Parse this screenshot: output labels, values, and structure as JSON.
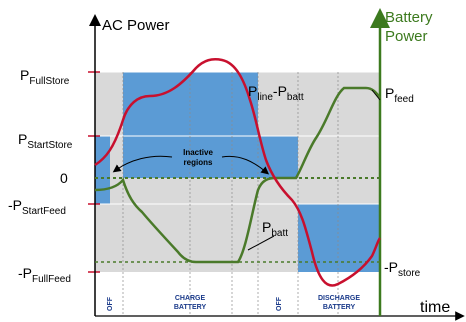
{
  "axes": {
    "left_title": "AC Power",
    "right_title_line1": "Battery",
    "right_title_line2": "Power",
    "x_label": "time"
  },
  "levels": {
    "full_store": {
      "base": "P",
      "sub": "FullStore"
    },
    "start_store": {
      "base": "P",
      "sub": "StartStore"
    },
    "zero": "0",
    "start_feed": {
      "base": "-P",
      "sub": "StartFeed"
    },
    "full_feed": {
      "base": "-P",
      "sub": "FullFeed"
    }
  },
  "curve_labels": {
    "line_minus_batt": {
      "a": "P",
      "a_sub": "line",
      "mid": "-P",
      "b_sub": "batt"
    },
    "batt": {
      "base": "P",
      "sub": "batt"
    },
    "feed": {
      "base": "P",
      "sub": "feed"
    },
    "store": {
      "base": "-P",
      "sub": "store"
    }
  },
  "annotation": {
    "line1": "Inactive",
    "line2": "regions"
  },
  "regions": [
    {
      "label": "OFF",
      "vertical": true
    },
    {
      "line1": "CHARGE",
      "line2": "BATTERY"
    },
    {
      "label": "OFF",
      "vertical": true
    },
    {
      "line1": "DISCHARGE",
      "line2": "BATTERY"
    }
  ],
  "colors": {
    "ac_axis": "#000000",
    "battery_axis": "#3c7a1e",
    "ac_curve": "#c8102e",
    "battery_curve": "#4a7a2a",
    "active_band": "#5b9bd5",
    "inactive_band": "#d9d9d9",
    "region_text": "#1a3a8a"
  }
}
